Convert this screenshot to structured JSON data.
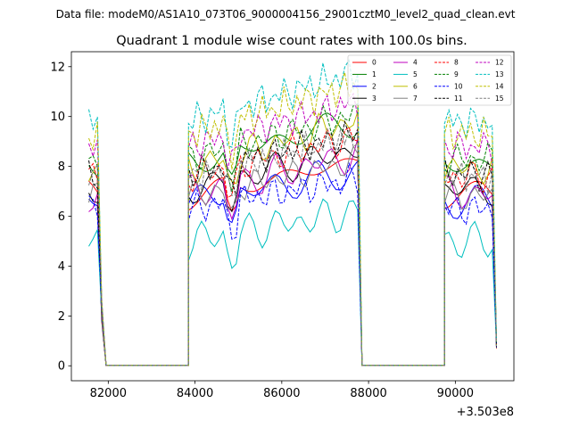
{
  "suptitle": "Data file: modeM0/AS1A10_073T06_9000004156_29001cztM0_level2_quad_clean.evt",
  "chart_data": {
    "type": "line",
    "title": "Quadrant 1 module wise count rates with 100.0s bins.",
    "xlabel": "",
    "ylabel": "",
    "x_offset_label": "+3.503e8",
    "xlim": [
      81150,
      91350
    ],
    "ylim": [
      -0.6,
      12.6
    ],
    "xticks": [
      82000,
      84000,
      86000,
      88000,
      90000
    ],
    "xtick_labels": [
      "82000",
      "84000",
      "86000",
      "88000",
      "90000"
    ],
    "yticks": [
      0,
      2,
      4,
      6,
      8,
      10,
      12
    ],
    "ytick_labels": [
      "0",
      "2",
      "4",
      "6",
      "8",
      "10",
      "12"
    ],
    "grid": false,
    "legend_position": "top-right",
    "segments": [
      {
        "start": 81550,
        "n": 4
      },
      {
        "start": 81950,
        "n": 20
      },
      {
        "start": 83850,
        "n": 40
      },
      {
        "start": 87850,
        "n": 20
      },
      {
        "start": 89750,
        "n": 13
      }
    ],
    "series": [
      {
        "name": "0",
        "color": "#ff0000",
        "dash": "solid",
        "base": 6.8,
        "slope": 0.35,
        "amp": 0.45
      },
      {
        "name": "1",
        "color": "#008000",
        "dash": "solid",
        "base": 8.1,
        "slope": 0.45,
        "amp": 0.45
      },
      {
        "name": "2",
        "color": "#0000ff",
        "dash": "solid",
        "base": 6.6,
        "slope": 0.3,
        "amp": 0.45
      },
      {
        "name": "3",
        "color": "#000000",
        "dash": "solid",
        "base": 7.1,
        "slope": 0.4,
        "amp": 0.45
      },
      {
        "name": "4",
        "color": "#bf00bf",
        "dash": "solid",
        "base": 6.9,
        "slope": 0.4,
        "amp": 0.5
      },
      {
        "name": "5",
        "color": "#00bfbf",
        "dash": "solid",
        "base": 5.0,
        "slope": 0.3,
        "amp": 0.5
      },
      {
        "name": "6",
        "color": "#bfbf00",
        "dash": "solid",
        "base": 7.9,
        "slope": 0.5,
        "amp": 0.45
      },
      {
        "name": "7",
        "color": "#808080",
        "dash": "solid",
        "base": 6.8,
        "slope": 0.35,
        "amp": 0.4
      },
      {
        "name": "8",
        "color": "#ff0000",
        "dash": "dashed",
        "base": 7.6,
        "slope": 0.4,
        "amp": 0.45
      },
      {
        "name": "9",
        "color": "#008000",
        "dash": "dashed",
        "base": 8.3,
        "slope": 0.45,
        "amp": 0.45
      },
      {
        "name": "10",
        "color": "#0000ff",
        "dash": "dashed",
        "base": 6.3,
        "slope": 0.3,
        "amp": 0.45
      },
      {
        "name": "11",
        "color": "#000000",
        "dash": "dashed",
        "base": 7.7,
        "slope": 0.4,
        "amp": 0.45
      },
      {
        "name": "12",
        "color": "#bf00bf",
        "dash": "dashed",
        "base": 8.8,
        "slope": 0.45,
        "amp": 0.45
      },
      {
        "name": "13",
        "color": "#00bfbf",
        "dash": "dashed",
        "base": 9.8,
        "slope": 0.5,
        "amp": 0.5
      },
      {
        "name": "14",
        "color": "#bfbf00",
        "dash": "dashed",
        "base": 9.3,
        "slope": 0.5,
        "amp": 0.5
      },
      {
        "name": "15",
        "color": "#808080",
        "dash": "dashed",
        "base": 7.6,
        "slope": 0.4,
        "amp": 0.45
      }
    ]
  }
}
